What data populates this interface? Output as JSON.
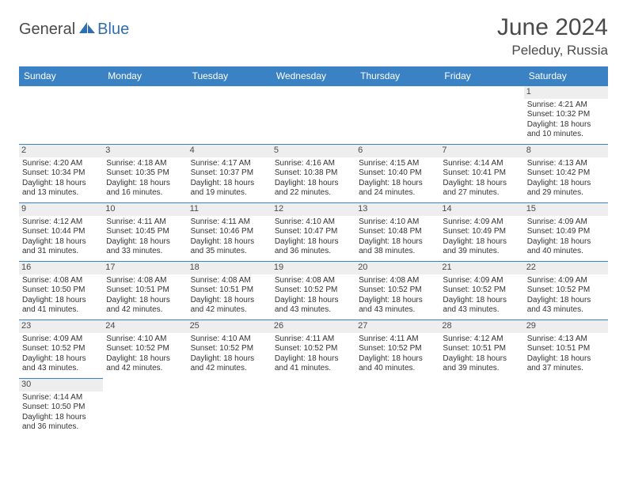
{
  "brand": {
    "part1": "General",
    "part2": "Blue"
  },
  "title": "June 2024",
  "location": "Peleduy, Russia",
  "colors": {
    "header_bg": "#3b82c4",
    "header_fg": "#ffffff",
    "daynum_bg": "#eeeeee",
    "rule": "#3b82c4",
    "text": "#333333",
    "brand_blue": "#2f6fb0"
  },
  "typography": {
    "title_fontsize": 30,
    "location_fontsize": 17,
    "dayheader_fontsize": 12,
    "body_fontsize": 10
  },
  "day_headers": [
    "Sunday",
    "Monday",
    "Tuesday",
    "Wednesday",
    "Thursday",
    "Friday",
    "Saturday"
  ],
  "weeks": [
    [
      null,
      null,
      null,
      null,
      null,
      null,
      {
        "n": "1",
        "sr": "4:21 AM",
        "ss": "10:32 PM",
        "dl": "18 hours and 10 minutes."
      }
    ],
    [
      {
        "n": "2",
        "sr": "4:20 AM",
        "ss": "10:34 PM",
        "dl": "18 hours and 13 minutes."
      },
      {
        "n": "3",
        "sr": "4:18 AM",
        "ss": "10:35 PM",
        "dl": "18 hours and 16 minutes."
      },
      {
        "n": "4",
        "sr": "4:17 AM",
        "ss": "10:37 PM",
        "dl": "18 hours and 19 minutes."
      },
      {
        "n": "5",
        "sr": "4:16 AM",
        "ss": "10:38 PM",
        "dl": "18 hours and 22 minutes."
      },
      {
        "n": "6",
        "sr": "4:15 AM",
        "ss": "10:40 PM",
        "dl": "18 hours and 24 minutes."
      },
      {
        "n": "7",
        "sr": "4:14 AM",
        "ss": "10:41 PM",
        "dl": "18 hours and 27 minutes."
      },
      {
        "n": "8",
        "sr": "4:13 AM",
        "ss": "10:42 PM",
        "dl": "18 hours and 29 minutes."
      }
    ],
    [
      {
        "n": "9",
        "sr": "4:12 AM",
        "ss": "10:44 PM",
        "dl": "18 hours and 31 minutes."
      },
      {
        "n": "10",
        "sr": "4:11 AM",
        "ss": "10:45 PM",
        "dl": "18 hours and 33 minutes."
      },
      {
        "n": "11",
        "sr": "4:11 AM",
        "ss": "10:46 PM",
        "dl": "18 hours and 35 minutes."
      },
      {
        "n": "12",
        "sr": "4:10 AM",
        "ss": "10:47 PM",
        "dl": "18 hours and 36 minutes."
      },
      {
        "n": "13",
        "sr": "4:10 AM",
        "ss": "10:48 PM",
        "dl": "18 hours and 38 minutes."
      },
      {
        "n": "14",
        "sr": "4:09 AM",
        "ss": "10:49 PM",
        "dl": "18 hours and 39 minutes."
      },
      {
        "n": "15",
        "sr": "4:09 AM",
        "ss": "10:49 PM",
        "dl": "18 hours and 40 minutes."
      }
    ],
    [
      {
        "n": "16",
        "sr": "4:08 AM",
        "ss": "10:50 PM",
        "dl": "18 hours and 41 minutes."
      },
      {
        "n": "17",
        "sr": "4:08 AM",
        "ss": "10:51 PM",
        "dl": "18 hours and 42 minutes."
      },
      {
        "n": "18",
        "sr": "4:08 AM",
        "ss": "10:51 PM",
        "dl": "18 hours and 42 minutes."
      },
      {
        "n": "19",
        "sr": "4:08 AM",
        "ss": "10:52 PM",
        "dl": "18 hours and 43 minutes."
      },
      {
        "n": "20",
        "sr": "4:08 AM",
        "ss": "10:52 PM",
        "dl": "18 hours and 43 minutes."
      },
      {
        "n": "21",
        "sr": "4:09 AM",
        "ss": "10:52 PM",
        "dl": "18 hours and 43 minutes."
      },
      {
        "n": "22",
        "sr": "4:09 AM",
        "ss": "10:52 PM",
        "dl": "18 hours and 43 minutes."
      }
    ],
    [
      {
        "n": "23",
        "sr": "4:09 AM",
        "ss": "10:52 PM",
        "dl": "18 hours and 43 minutes."
      },
      {
        "n": "24",
        "sr": "4:10 AM",
        "ss": "10:52 PM",
        "dl": "18 hours and 42 minutes."
      },
      {
        "n": "25",
        "sr": "4:10 AM",
        "ss": "10:52 PM",
        "dl": "18 hours and 42 minutes."
      },
      {
        "n": "26",
        "sr": "4:11 AM",
        "ss": "10:52 PM",
        "dl": "18 hours and 41 minutes."
      },
      {
        "n": "27",
        "sr": "4:11 AM",
        "ss": "10:52 PM",
        "dl": "18 hours and 40 minutes."
      },
      {
        "n": "28",
        "sr": "4:12 AM",
        "ss": "10:51 PM",
        "dl": "18 hours and 39 minutes."
      },
      {
        "n": "29",
        "sr": "4:13 AM",
        "ss": "10:51 PM",
        "dl": "18 hours and 37 minutes."
      }
    ],
    [
      {
        "n": "30",
        "sr": "4:14 AM",
        "ss": "10:50 PM",
        "dl": "18 hours and 36 minutes."
      },
      null,
      null,
      null,
      null,
      null,
      null
    ]
  ],
  "labels": {
    "sunrise": "Sunrise: ",
    "sunset": "Sunset: ",
    "daylight": "Daylight: "
  }
}
